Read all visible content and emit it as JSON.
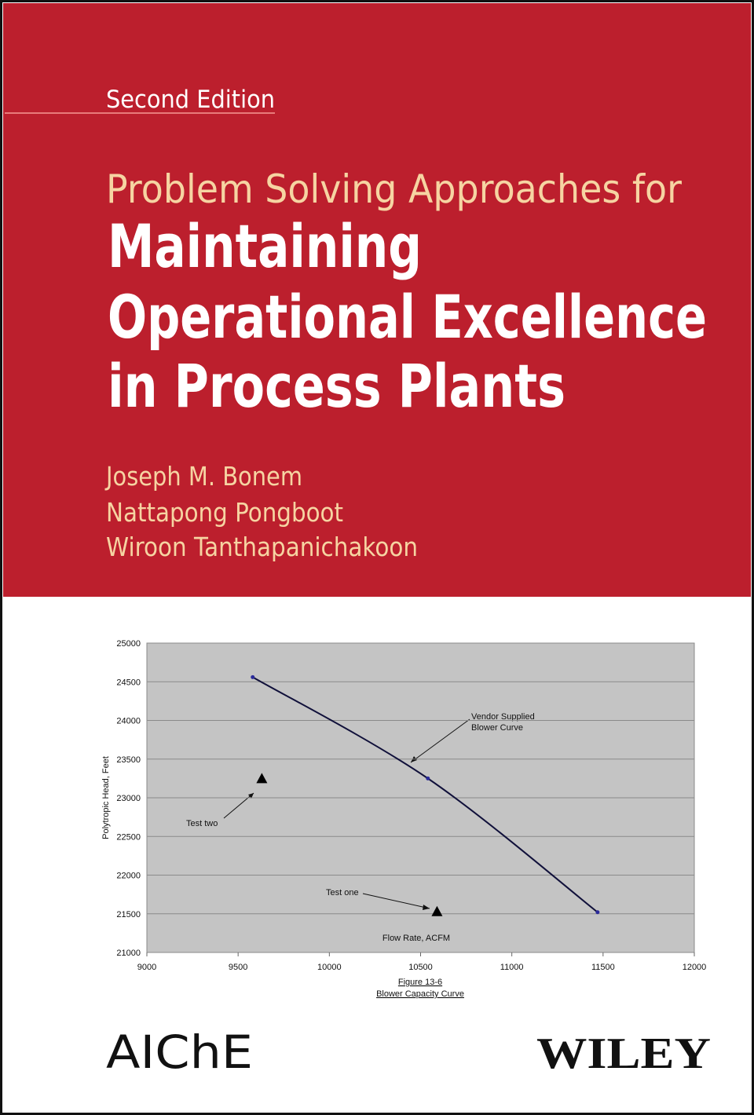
{
  "cover": {
    "edition": "Second Edition",
    "subtitle": "Problem Solving Approaches for",
    "title_lines": [
      "Maintaining",
      "Operational Excellence",
      "in Process Plants"
    ],
    "authors": [
      "Joseph M. Bonem",
      "Nattapong Pongboot",
      "Wiroon Tanthapanichakoon"
    ]
  },
  "chart_data": {
    "type": "line",
    "y_label": "Polytropic Head, Feet",
    "x_label": "Flow Rate, ACFM",
    "caption": [
      "Figure 13-6",
      "Blower Capacity Curve"
    ],
    "annotations": [
      [
        "Vendor Supplied",
        "Blower Curve"
      ],
      [
        "Test two"
      ],
      [
        "Test one"
      ]
    ],
    "xlim": [
      9000,
      12000
    ],
    "xticks": [
      9000,
      9500,
      10000,
      10500,
      11000,
      11500,
      12000
    ],
    "ylim": [
      21000,
      25000
    ],
    "yticks": [
      21000,
      21500,
      22000,
      22500,
      23000,
      23500,
      24000,
      24500,
      25000
    ],
    "grid": true,
    "plot_background": "#c4c4c4",
    "series": [
      {
        "color": "#10103a",
        "marker": "dot",
        "smooth": true,
        "x": [
          9580,
          10540,
          11470
        ],
        "values": [
          24560,
          23250,
          21520
        ]
      },
      {
        "color": "#000000",
        "marker": "triangle",
        "smooth": false,
        "x": [
          9630,
          10590
        ],
        "values": [
          23250,
          21530
        ]
      }
    ]
  },
  "publishers": {
    "left": "AIChE",
    "right": "WILEY"
  }
}
